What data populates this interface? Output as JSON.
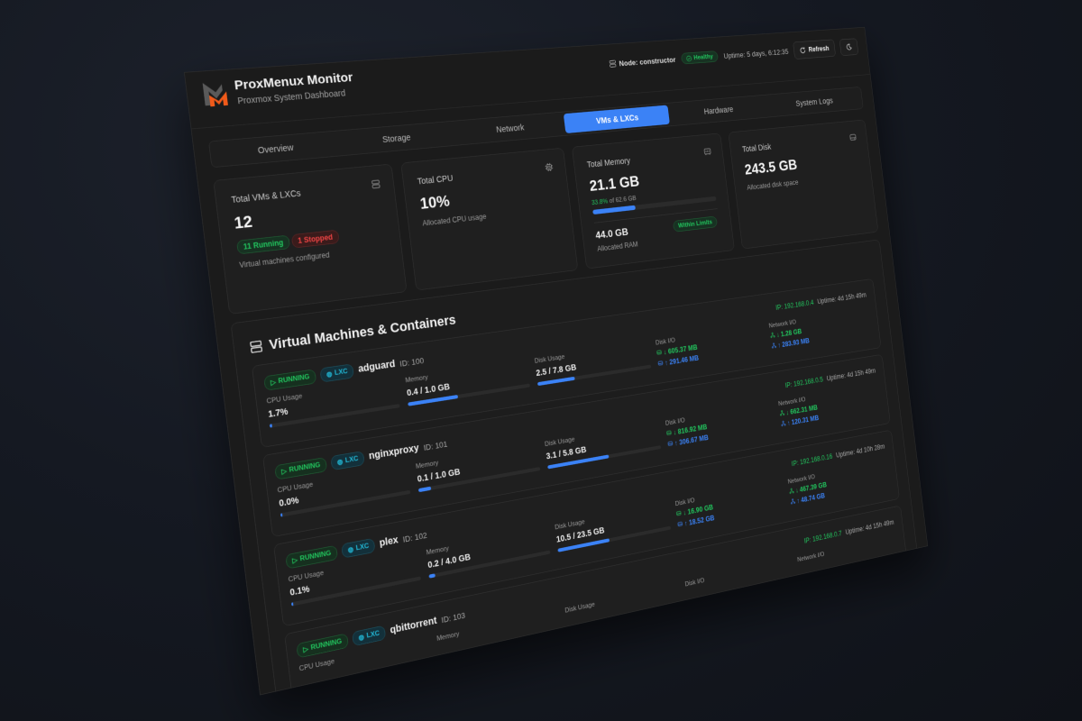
{
  "header": {
    "title": "ProxMenux Monitor",
    "subtitle": "Proxmox System Dashboard",
    "node": "Node: constructor",
    "status": "Healthy",
    "uptime": "Uptime: 5 days, 6:12:35",
    "refresh": "Refresh"
  },
  "tabs": [
    {
      "label": "Overview",
      "active": false
    },
    {
      "label": "Storage",
      "active": false
    },
    {
      "label": "Network",
      "active": false
    },
    {
      "label": "VMs & LXCs",
      "active": true
    },
    {
      "label": "Hardware",
      "active": false
    },
    {
      "label": "System Logs",
      "active": false
    }
  ],
  "stats": {
    "vms": {
      "title": "Total VMs & LXCs",
      "value": "12",
      "running": "11 Running",
      "stopped": "1 Stopped",
      "desc": "Virtual machines configured",
      "icon": "server-icon"
    },
    "cpu": {
      "title": "Total CPU",
      "value": "10%",
      "desc": "Allocated CPU usage",
      "icon": "cpu-icon"
    },
    "memory": {
      "title": "Total Memory",
      "value": "21.1 GB",
      "percent": "33.8%",
      "of": "of 62.6 GB",
      "usage_percent": 33.8,
      "allocated": "44.0 GB",
      "allocated_label": "Allocated RAM",
      "badge": "Within Limits",
      "icon": "memory-icon"
    },
    "disk": {
      "title": "Total Disk",
      "value": "243.5 GB",
      "desc": "Allocated disk space",
      "icon": "hard-drive-icon"
    }
  },
  "vm_section": {
    "title": "Virtual Machines & Containers",
    "labels": {
      "cpu": "CPU Usage",
      "memory": "Memory",
      "disk": "Disk Usage",
      "disk_io": "Disk I/O",
      "net_io": "Network I/O"
    },
    "items": [
      {
        "status": "RUNNING",
        "type": "LXC",
        "name": "adguard",
        "id": "ID: 100",
        "ip": "IP: 192.168.0.4",
        "uptime": "Uptime: 4d 15h 49m",
        "cpu": "1.7%",
        "cpu_percent": 1.7,
        "memory": "0.4 / 1.0 GB",
        "memory_percent": 40,
        "disk": "2.5 / 7.8 GB",
        "disk_percent": 32,
        "disk_read": "↓ 605.37 MB",
        "disk_write": "↑ 291.46 MB",
        "net_in": "↓ 1.28 GB",
        "net_out": "↑ 283.93 MB"
      },
      {
        "status": "RUNNING",
        "type": "LXC",
        "name": "nginxproxy",
        "id": "ID: 101",
        "ip": "IP: 192.168.0.5",
        "uptime": "Uptime: 4d 15h 49m",
        "cpu": "0.0%",
        "cpu_percent": 0,
        "memory": "0.1 / 1.0 GB",
        "memory_percent": 10,
        "disk": "3.1 / 5.8 GB",
        "disk_percent": 53,
        "disk_read": "↓ 816.92 MB",
        "disk_write": "↑ 306.67 MB",
        "net_in": "↓ 662.31 MB",
        "net_out": "↑ 120.31 MB"
      },
      {
        "status": "RUNNING",
        "type": "LXC",
        "name": "plex",
        "id": "ID: 102",
        "ip": "IP: 192.168.0.16",
        "uptime": "Uptime: 4d 10h 28m",
        "cpu": "0.1%",
        "cpu_percent": 0.1,
        "memory": "0.2 / 4.0 GB",
        "memory_percent": 5,
        "disk": "10.5 / 23.5 GB",
        "disk_percent": 45,
        "disk_read": "↓ 16.90 GB",
        "disk_write": "↑ 18.52 GB",
        "net_in": "↓ 467.39 GB",
        "net_out": "↑ 48.74 GB"
      },
      {
        "status": "RUNNING",
        "type": "LXC",
        "name": "qbittorrent",
        "id": "ID: 103",
        "ip": "IP: 192.168.0.7",
        "uptime": "Uptime: 4d 15h 49m"
      }
    ]
  },
  "colors": {
    "accent": "#3b82f6",
    "success": "#22c55e",
    "danger": "#ef4444",
    "lxc": "#22b8d6",
    "logo_orange": "#f05a1a"
  }
}
